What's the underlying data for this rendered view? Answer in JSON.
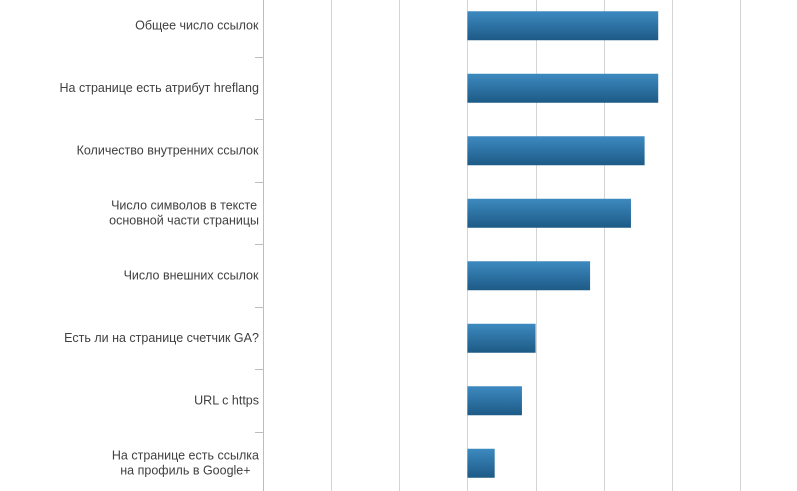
{
  "chart_data": {
    "type": "bar",
    "orientation": "horizontal",
    "categories": [
      "Общее число ссылок",
      "На странице есть атрибут hreflang",
      "Количество внутренних ссылок",
      "Число символов в тексте основной части страницы",
      "Число внешних ссылок",
      "Есть ли на странице счетчик GA?",
      "URL с https",
      "На странице есть ссылка на профиль в Google+"
    ],
    "category_lines": [
      [
        "Общее число ссылок"
      ],
      [
        "На странице есть атрибут hreflang"
      ],
      [
        "Количество внутренних ссылок"
      ],
      [
        "Число символов в тексте",
        "основной части страницы"
      ],
      [
        "Число внешних ссылок"
      ],
      [
        "Есть ли на странице счетчик GA?"
      ],
      [
        "URL с https"
      ],
      [
        "На странице есть ссылка",
        "на профиль в Google+"
      ]
    ],
    "values": [
      0.14,
      0.14,
      0.13,
      0.12,
      0.09,
      0.05,
      0.04,
      0.02
    ],
    "xlim": [
      -0.15,
      0.2
    ],
    "gridlines": [
      -0.15,
      -0.1,
      -0.05,
      0,
      0.05,
      0.1,
      0.15,
      0.2
    ],
    "grid": true,
    "bar_color_light": "#3d8ac0",
    "bar_color_dark": "#1d5a86",
    "grid_color": "#d4d4d4",
    "axis_color": "#bdbdbd",
    "label_color": "#404040"
  }
}
